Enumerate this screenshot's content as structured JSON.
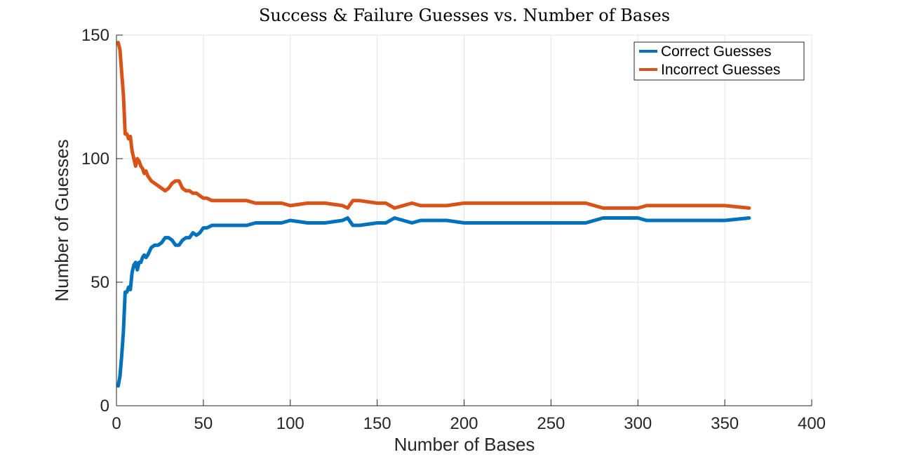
{
  "chart_data": {
    "type": "line",
    "title": "Success & Failure Guesses vs. Number of Bases",
    "xlabel": "Number of Bases",
    "ylabel": "Number of Guesses",
    "xlim": [
      0,
      400
    ],
    "ylim": [
      0,
      150
    ],
    "xticks": [
      0,
      50,
      100,
      150,
      200,
      250,
      300,
      350,
      400
    ],
    "yticks": [
      0,
      50,
      100,
      150
    ],
    "grid": true,
    "legend_position": "top-right",
    "series": [
      {
        "name": "Correct Guesses",
        "color": "#0072BD",
        "x": [
          1,
          2,
          3,
          4,
          5,
          6,
          7,
          8,
          9,
          10,
          11,
          12,
          13,
          14,
          15,
          16,
          17,
          18,
          20,
          22,
          24,
          26,
          28,
          30,
          32,
          34,
          36,
          38,
          40,
          42,
          44,
          46,
          48,
          50,
          52,
          55,
          60,
          65,
          70,
          75,
          80,
          85,
          90,
          95,
          100,
          110,
          120,
          130,
          133,
          136,
          140,
          150,
          155,
          160,
          165,
          170,
          175,
          180,
          190,
          200,
          250,
          270,
          275,
          280,
          290,
          300,
          305,
          350,
          364
        ],
        "values": [
          8,
          12,
          20,
          30,
          46,
          46,
          48,
          47,
          54,
          57,
          58,
          55,
          58,
          58,
          60,
          61,
          60,
          61,
          64,
          65,
          65,
          66,
          68,
          68,
          67,
          65,
          65,
          67,
          68,
          68,
          70,
          69,
          70,
          72,
          72,
          73,
          73,
          73,
          73,
          73,
          74,
          74,
          74,
          74,
          75,
          74,
          74,
          75,
          76,
          73,
          73,
          74,
          74,
          76,
          75,
          74,
          75,
          75,
          75,
          74,
          74,
          74,
          75,
          76,
          76,
          76,
          75,
          75,
          76
        ]
      },
      {
        "name": "Incorrect Guesses",
        "color": "#D95319",
        "x": [
          1,
          2,
          3,
          4,
          5,
          6,
          7,
          8,
          9,
          10,
          11,
          12,
          13,
          14,
          15,
          16,
          17,
          18,
          20,
          22,
          24,
          26,
          28,
          30,
          32,
          34,
          36,
          38,
          40,
          42,
          44,
          46,
          48,
          50,
          52,
          55,
          60,
          65,
          70,
          75,
          80,
          85,
          90,
          95,
          100,
          110,
          120,
          130,
          133,
          136,
          140,
          150,
          155,
          160,
          165,
          170,
          175,
          180,
          190,
          200,
          250,
          270,
          275,
          280,
          290,
          300,
          305,
          350,
          364
        ],
        "values": [
          147,
          144,
          135,
          126,
          110,
          110,
          108,
          109,
          103,
          100,
          97,
          100,
          99,
          97,
          96,
          94,
          95,
          93,
          91,
          90,
          89,
          88,
          87,
          88,
          90,
          91,
          91,
          88,
          87,
          87,
          86,
          86,
          85,
          84,
          84,
          83,
          83,
          83,
          83,
          83,
          82,
          82,
          82,
          82,
          81,
          82,
          82,
          81,
          80,
          83,
          83,
          82,
          82,
          80,
          81,
          82,
          81,
          81,
          81,
          82,
          82,
          82,
          81,
          80,
          80,
          80,
          81,
          81,
          80
        ]
      }
    ]
  }
}
